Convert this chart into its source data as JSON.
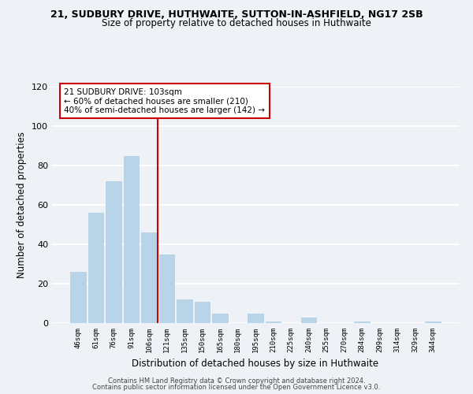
{
  "title1": "21, SUDBURY DRIVE, HUTHWAITE, SUTTON-IN-ASHFIELD, NG17 2SB",
  "title2": "Size of property relative to detached houses in Huthwaite",
  "xlabel": "Distribution of detached houses by size in Huthwaite",
  "ylabel": "Number of detached properties",
  "bar_labels": [
    "46sqm",
    "61sqm",
    "76sqm",
    "91sqm",
    "106sqm",
    "121sqm",
    "135sqm",
    "150sqm",
    "165sqm",
    "180sqm",
    "195sqm",
    "210sqm",
    "225sqm",
    "240sqm",
    "255sqm",
    "270sqm",
    "284sqm",
    "299sqm",
    "314sqm",
    "329sqm",
    "344sqm"
  ],
  "bar_values": [
    26,
    56,
    72,
    85,
    46,
    35,
    12,
    11,
    5,
    0,
    5,
    1,
    0,
    3,
    0,
    0,
    1,
    0,
    0,
    0,
    1
  ],
  "bar_color": "#b8d4e8",
  "bar_edge_color": "#b0cce0",
  "vline_color": "#cc0000",
  "annotation_title": "21 SUDBURY DRIVE: 103sqm",
  "annotation_line1": "← 60% of detached houses are smaller (210)",
  "annotation_line2": "40% of semi-detached houses are larger (142) →",
  "annotation_box_color": "#ffffff",
  "annotation_box_edge": "#cc0000",
  "ylim": [
    0,
    120
  ],
  "yticks": [
    0,
    20,
    40,
    60,
    80,
    100,
    120
  ],
  "footer1": "Contains HM Land Registry data © Crown copyright and database right 2024.",
  "footer2": "Contains public sector information licensed under the Open Government Licence v3.0.",
  "bg_color": "#eef2f7",
  "grid_color": "#ffffff"
}
